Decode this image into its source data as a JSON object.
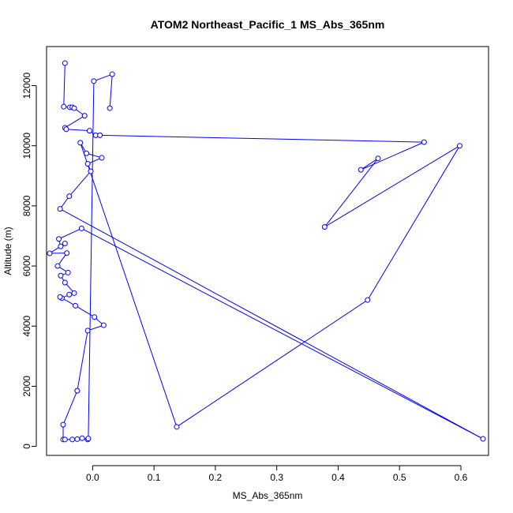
{
  "chart_data": {
    "type": "line",
    "title": "ATOM2 Northeast_Pacific_1 MS_Abs_365nm",
    "xlabel": "MS_Abs_365nm",
    "ylabel": "Altitude (m)",
    "xlim": [
      -0.075,
      0.645
    ],
    "ylim": [
      -300,
      13300
    ],
    "x_ticks": [
      0.0,
      0.1,
      0.2,
      0.3,
      0.4,
      0.5,
      0.6
    ],
    "x_tick_labels": [
      "0.0",
      "0.1",
      "0.2",
      "0.3",
      "0.4",
      "0.5",
      "0.6"
    ],
    "y_ticks": [
      0,
      2000,
      4000,
      6000,
      8000,
      10000,
      12000
    ],
    "y_tick_labels": [
      "0",
      "2000",
      "4000",
      "6000",
      "8000",
      "10000",
      "12000"
    ],
    "grid": false,
    "series": [
      {
        "color": "#0000ff",
        "marker": "open-circle",
        "points": [
          {
            "x": -0.045,
            "y": 12750
          },
          {
            "x": -0.047,
            "y": 11300
          },
          {
            "x": -0.037,
            "y": 11280
          },
          {
            "x": -0.033,
            "y": 11280
          },
          {
            "x": -0.03,
            "y": 11250
          },
          {
            "x": -0.013,
            "y": 11000
          },
          {
            "x": -0.045,
            "y": 10600
          },
          {
            "x": -0.043,
            "y": 10550
          },
          {
            "x": -0.005,
            "y": 10500
          },
          {
            "x": 0.005,
            "y": 10350
          },
          {
            "x": 0.012,
            "y": 10350
          },
          {
            "x": 0.54,
            "y": 10120
          },
          {
            "x": 0.437,
            "y": 9200
          },
          {
            "x": 0.465,
            "y": 9580
          },
          {
            "x": 0.378,
            "y": 7300
          },
          {
            "x": 0.598,
            "y": 10000
          },
          {
            "x": 0.448,
            "y": 4870
          },
          {
            "x": 0.137,
            "y": 650
          },
          {
            "x": -0.02,
            "y": 10100
          },
          {
            "x": -0.01,
            "y": 9750
          },
          {
            "x": 0.015,
            "y": 9600
          },
          {
            "x": -0.008,
            "y": 9400
          },
          {
            "x": -0.003,
            "y": 9150
          },
          {
            "x": -0.038,
            "y": 8320
          },
          {
            "x": -0.053,
            "y": 7900
          },
          {
            "x": 0.636,
            "y": 250
          },
          {
            "x": -0.018,
            "y": 7250
          },
          {
            "x": -0.055,
            "y": 6900
          },
          {
            "x": -0.052,
            "y": 6650
          },
          {
            "x": -0.045,
            "y": 6750
          },
          {
            "x": -0.07,
            "y": 6420
          },
          {
            "x": -0.042,
            "y": 6430
          },
          {
            "x": -0.057,
            "y": 6000
          },
          {
            "x": -0.04,
            "y": 5780
          },
          {
            "x": -0.052,
            "y": 5680
          },
          {
            "x": -0.045,
            "y": 5450
          },
          {
            "x": -0.03,
            "y": 5100
          },
          {
            "x": -0.038,
            "y": 5050
          },
          {
            "x": -0.05,
            "y": 4930
          },
          {
            "x": -0.053,
            "y": 4970
          },
          {
            "x": -0.028,
            "y": 4680
          },
          {
            "x": 0.003,
            "y": 4300
          },
          {
            "x": 0.018,
            "y": 4030
          },
          {
            "x": -0.008,
            "y": 3850
          },
          {
            "x": -0.025,
            "y": 1850
          },
          {
            "x": -0.048,
            "y": 720
          },
          {
            "x": -0.048,
            "y": 230
          },
          {
            "x": -0.045,
            "y": 230
          },
          {
            "x": -0.033,
            "y": 230
          },
          {
            "x": -0.025,
            "y": 240
          },
          {
            "x": -0.017,
            "y": 270
          },
          {
            "x": -0.008,
            "y": 230
          },
          {
            "x": -0.007,
            "y": 260
          },
          {
            "x": 0.002,
            "y": 12150
          },
          {
            "x": 0.032,
            "y": 12380
          },
          {
            "x": 0.028,
            "y": 11250
          }
        ]
      }
    ]
  }
}
